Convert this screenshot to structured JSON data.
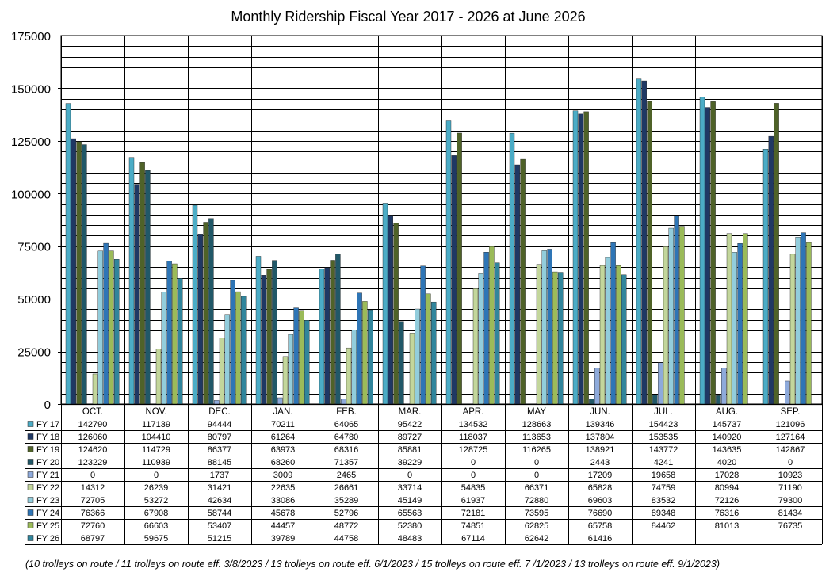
{
  "chart_data": {
    "type": "bar",
    "title": "Monthly Ridership Fiscal Year 2017 - 2026 at June 2026",
    "footnote": "(10 trolleys on route / 11 trolleys on route eff. 3/8/2023 / 13 trolleys on route eff. 6/1/2023 / 15 trolleys on route eff. 7 /1/2023 / 13 trolleys on route eff. 9/1/2023)",
    "categories": [
      "OCT.",
      "NOV.",
      "DEC.",
      "JAN.",
      "FEB.",
      "MAR.",
      "APR.",
      "MAY",
      "JUN.",
      "JUL.",
      "AUG.",
      "SEP."
    ],
    "ylim": [
      0,
      175000
    ],
    "yticks": [
      0,
      25000,
      50000,
      75000,
      100000,
      125000,
      150000,
      175000
    ],
    "ytick_labels": [
      "0",
      "25000",
      "50000",
      "75000",
      "100000",
      "125000",
      "150000",
      "175000"
    ],
    "grid": true,
    "legend": "data-table",
    "series": [
      {
        "name": "FY 17",
        "color": "#4bacc6",
        "values": [
          142790,
          117139,
          94444,
          70211,
          64065,
          95422,
          134532,
          128663,
          139346,
          154423,
          145737,
          121096
        ],
        "labels": [
          "142790",
          "117139",
          "94444",
          "70211",
          "64065",
          "95422",
          "134532",
          "128663",
          "139346",
          "154423",
          "145737",
          "121096"
        ]
      },
      {
        "name": "FY 18",
        "color": "#1f3864",
        "values": [
          126060,
          104410,
          80797,
          61264,
          64780,
          89727,
          118037,
          113653,
          137804,
          153535,
          140920,
          127164
        ],
        "labels": [
          "126060",
          "104410",
          "80797",
          "61264",
          "64780",
          "89727",
          "118037",
          "113653",
          "137804",
          "153535",
          "140920",
          "127164"
        ]
      },
      {
        "name": "FY 19",
        "color": "#4f6228",
        "values": [
          124620,
          114729,
          86377,
          63973,
          68316,
          85881,
          128725,
          116265,
          138921,
          143772,
          143635,
          142867
        ],
        "labels": [
          "124620",
          "114729",
          "86377",
          "63973",
          "68316",
          "85881",
          "128725",
          "116265",
          "138921",
          "143772",
          "143635",
          "142867"
        ]
      },
      {
        "name": "FY 20",
        "color": "#215868",
        "values": [
          123229,
          110939,
          88145,
          68260,
          71357,
          39229,
          0,
          0,
          2443,
          4241,
          4020,
          0
        ],
        "labels": [
          "123229",
          "110939",
          "88145",
          "68260",
          "71357",
          "39229",
          "0",
          "0",
          "2443",
          "4241",
          "4020",
          "0"
        ]
      },
      {
        "name": "FY 21",
        "color": "#8eaadb",
        "values": [
          0,
          0,
          1737,
          3009,
          2465,
          0,
          0,
          0,
          17209,
          19658,
          17028,
          10923
        ],
        "labels": [
          "0",
          "0",
          "1737",
          "3009",
          "2465",
          "0",
          "0",
          "0",
          "17209",
          "19658",
          "17028",
          "10923"
        ]
      },
      {
        "name": "FY 22",
        "color": "#c3d69b",
        "values": [
          14312,
          26239,
          31421,
          22635,
          26661,
          33714,
          54835,
          66371,
          65828,
          74759,
          80994,
          71190
        ],
        "labels": [
          "14312",
          "26239",
          "31421",
          "22635",
          "26661",
          "33714",
          "54835",
          "66371",
          "65828",
          "74759",
          "80994",
          "71190"
        ]
      },
      {
        "name": "FY 23",
        "color": "#92cddc",
        "values": [
          72705,
          53272,
          42634,
          33086,
          35289,
          45149,
          61937,
          72880,
          69603,
          83532,
          72126,
          79300
        ],
        "labels": [
          "72705",
          "53272",
          "42634",
          "33086",
          "35289",
          "45149",
          "61937",
          "72880",
          "69603",
          "83532",
          "72126",
          "79300"
        ]
      },
      {
        "name": "FY 24",
        "color": "#2e75b6",
        "values": [
          76366,
          67908,
          58744,
          45678,
          52796,
          65563,
          72181,
          73595,
          76690,
          89348,
          76316,
          81434
        ],
        "labels": [
          "76366",
          "67908",
          "58744",
          "45678",
          "52796",
          "65563",
          "72181",
          "73595",
          "76690",
          "89348",
          "76316",
          "81434"
        ]
      },
      {
        "name": "FY 25",
        "color": "#9bbb59",
        "values": [
          72760,
          66603,
          53407,
          44457,
          48772,
          52380,
          74851,
          62825,
          65758,
          84462,
          81013,
          76735
        ],
        "labels": [
          "72760",
          "66603",
          "53407",
          "44457",
          "48772",
          "52380",
          "74851",
          "62825",
          "65758",
          "84462",
          "81013",
          "76735"
        ]
      },
      {
        "name": "FY 26",
        "color": "#31859c",
        "values": [
          68797,
          59675,
          51215,
          39789,
          44758,
          48483,
          67114,
          62642,
          61416,
          null,
          null,
          null
        ],
        "labels": [
          "68797",
          "59675",
          "51215",
          "39789",
          "44758",
          "48483",
          "67114",
          "62642",
          "61416",
          "",
          "",
          ""
        ]
      }
    ]
  }
}
